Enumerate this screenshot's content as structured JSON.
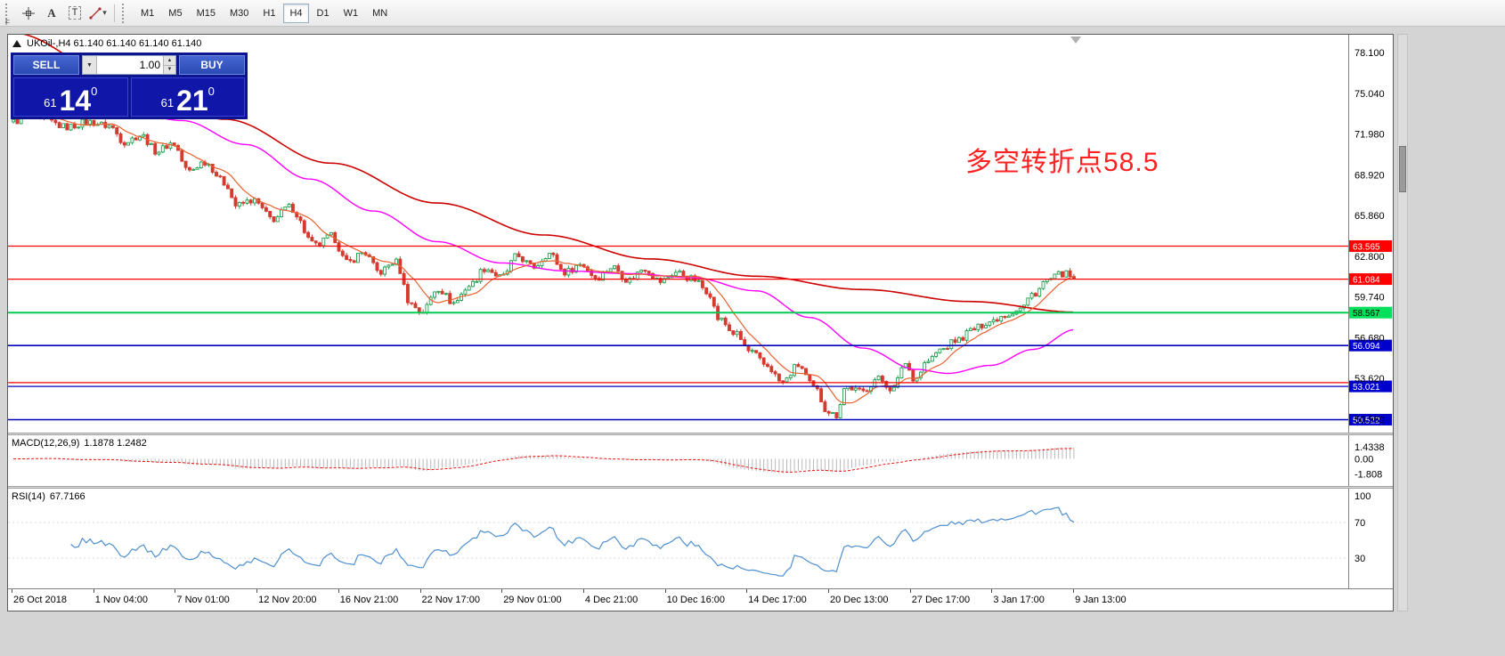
{
  "icons": {
    "caret_down": "▾",
    "lot_dropdown": "▼",
    "spin_up": "▲",
    "spin_down": "▼"
  },
  "toolbar": {
    "grip_mark": "F",
    "tool_a_label": "A",
    "tool_t_label": "T",
    "timeframes": [
      "M1",
      "M5",
      "M15",
      "M30",
      "H1",
      "H4",
      "D1",
      "W1",
      "MN"
    ],
    "active_timeframe": "H4"
  },
  "chart": {
    "title": "UKOil-,H4 61.140 61.140 61.140 61.140",
    "annotation": {
      "text": "多空转折点58.5",
      "color": "#ff2222"
    },
    "trade_panel": {
      "sell_label": "SELL",
      "buy_label": "BUY",
      "lot_value": "1.00",
      "sell_price": {
        "small": "61",
        "big": "14",
        "sup": "0"
      },
      "buy_price": {
        "small": "61",
        "big": "21",
        "sup": "0"
      }
    }
  },
  "chart_data": {
    "type": "candlestick",
    "symbol": "UKOil-",
    "period": "H4",
    "ohlc": [
      "61.140",
      "61.140",
      "61.140",
      "61.140"
    ],
    "last_close": 61.14,
    "candle_count": 278,
    "colors": {
      "bull": "#1f9e4e",
      "bear": "#d43a2f",
      "ma_fast": "#e8622d",
      "ma_mid": "#ff00ff",
      "ma_slow": "#cc0000",
      "macd_hist": "#b8b8b8",
      "macd_signal": "#ee1111",
      "rsi": "#4f8fd0"
    },
    "y_axis": {
      "max": 79.45,
      "min": 49.55,
      "ticks": [
        "78.100",
        "75.040",
        "71.980",
        "68.920",
        "65.860",
        "62.800",
        "59.740",
        "56.680",
        "53.620",
        "50.560"
      ]
    },
    "x_axis": {
      "labels": [
        "26 Oct 2018",
        "1 Nov 04:00",
        "7 Nov 01:00",
        "12 Nov 20:00",
        "16 Nov 21:00",
        "22 Nov 17:00",
        "29 Nov 01:00",
        "4 Dec 21:00",
        "10 Dec 16:00",
        "14 Dec 17:00",
        "20 Dec 13:00",
        "27 Dec 17:00",
        "3 Jan 17:00",
        "9 Jan 13:00"
      ]
    },
    "hlines": [
      {
        "price": 63.565,
        "color": "#ff0000",
        "width": 1.2,
        "tag": "63.565",
        "tag_bg": "#ff0000",
        "tag_color": "#ffffff"
      },
      {
        "price": 61.084,
        "color": "#ff0000",
        "width": 1.2,
        "tag": "61.084",
        "tag_bg": "#ff0000",
        "tag_color": "#ffffff"
      },
      {
        "price": 58.567,
        "color": "#00cc55",
        "width": 2,
        "tag": "58.567",
        "tag_bg": "#00e05a",
        "tag_color": "#000000"
      },
      {
        "price": 56.094,
        "color": "#0000bb",
        "width": 1.6,
        "tag": "56.094",
        "tag_bg": "#0000cc",
        "tag_color": "#ffffff"
      },
      {
        "price": 53.3,
        "color": "#ff0000",
        "width": 1.2,
        "tag": null
      },
      {
        "price": 53.021,
        "color": "#0000bb",
        "width": 1.2,
        "tag": "53.021",
        "tag_bg": "#0000cc",
        "tag_color": "#ffffff"
      },
      {
        "price": 50.522,
        "color": "#0000bb",
        "width": 1.6,
        "tag": "50.522",
        "tag_bg": "#0000cc",
        "tag_color": "#ffffff"
      }
    ],
    "price_path": [
      [
        0.0,
        72.9
      ],
      [
        0.012,
        73.3
      ],
      [
        0.03,
        73.0
      ],
      [
        0.05,
        72.5
      ],
      [
        0.07,
        72.9
      ],
      [
        0.09,
        72.6
      ],
      [
        0.105,
        71.4
      ],
      [
        0.12,
        71.9
      ],
      [
        0.135,
        70.7
      ],
      [
        0.15,
        71.3
      ],
      [
        0.165,
        69.2
      ],
      [
        0.18,
        69.9
      ],
      [
        0.2,
        68.3
      ],
      [
        0.21,
        66.6
      ],
      [
        0.225,
        67.0
      ],
      [
        0.245,
        65.6
      ],
      [
        0.26,
        66.5
      ],
      [
        0.285,
        63.6
      ],
      [
        0.3,
        64.3
      ],
      [
        0.315,
        62.3
      ],
      [
        0.33,
        63.1
      ],
      [
        0.345,
        61.6
      ],
      [
        0.36,
        62.4
      ],
      [
        0.375,
        59.2
      ],
      [
        0.385,
        58.6
      ],
      [
        0.4,
        60.4
      ],
      [
        0.415,
        59.3
      ],
      [
        0.43,
        60.6
      ],
      [
        0.445,
        61.9
      ],
      [
        0.46,
        61.2
      ],
      [
        0.475,
        62.8
      ],
      [
        0.49,
        62.0
      ],
      [
        0.505,
        63.0
      ],
      [
        0.52,
        61.6
      ],
      [
        0.535,
        62.2
      ],
      [
        0.55,
        61.2
      ],
      [
        0.565,
        62.0
      ],
      [
        0.58,
        61.0
      ],
      [
        0.595,
        61.9
      ],
      [
        0.61,
        60.9
      ],
      [
        0.625,
        61.6
      ],
      [
        0.64,
        61.1
      ],
      [
        0.655,
        60.2
      ],
      [
        0.665,
        58.1
      ],
      [
        0.68,
        57.0
      ],
      [
        0.695,
        55.6
      ],
      [
        0.71,
        54.6
      ],
      [
        0.725,
        53.3
      ],
      [
        0.74,
        54.6
      ],
      [
        0.755,
        52.9
      ],
      [
        0.768,
        51.2
      ],
      [
        0.775,
        50.8
      ],
      [
        0.785,
        53.0
      ],
      [
        0.8,
        52.6
      ],
      [
        0.815,
        53.6
      ],
      [
        0.83,
        52.8
      ],
      [
        0.84,
        54.8
      ],
      [
        0.85,
        53.6
      ],
      [
        0.862,
        54.9
      ],
      [
        0.875,
        55.8
      ],
      [
        0.89,
        56.5
      ],
      [
        0.905,
        57.3
      ],
      [
        0.92,
        57.9
      ],
      [
        0.935,
        58.4
      ],
      [
        0.95,
        58.9
      ],
      [
        0.962,
        60.0
      ],
      [
        0.975,
        61.0
      ],
      [
        0.99,
        61.5
      ],
      [
        1.0,
        61.14
      ]
    ],
    "ma_slow_path": [
      [
        0.0,
        79.6
      ],
      [
        0.1,
        76.3
      ],
      [
        0.2,
        73.1
      ],
      [
        0.3,
        69.8
      ],
      [
        0.4,
        66.8
      ],
      [
        0.5,
        64.4
      ],
      [
        0.6,
        62.6
      ],
      [
        0.7,
        61.3
      ],
      [
        0.8,
        60.3
      ],
      [
        0.9,
        59.4
      ],
      [
        1.0,
        58.6
      ]
    ],
    "ma_mid_path": [
      [
        0.0,
        75.8
      ],
      [
        0.08,
        74.6
      ],
      [
        0.16,
        73.0
      ],
      [
        0.22,
        71.2
      ],
      [
        0.28,
        68.6
      ],
      [
        0.34,
        66.2
      ],
      [
        0.4,
        63.9
      ],
      [
        0.46,
        62.3
      ],
      [
        0.52,
        61.7
      ],
      [
        0.58,
        61.5
      ],
      [
        0.64,
        61.2
      ],
      [
        0.7,
        60.2
      ],
      [
        0.75,
        58.2
      ],
      [
        0.8,
        55.9
      ],
      [
        0.85,
        54.3
      ],
      [
        0.88,
        54.0
      ],
      [
        0.92,
        54.6
      ],
      [
        0.96,
        55.8
      ],
      [
        1.0,
        57.3
      ]
    ],
    "indicators": {
      "macd": {
        "label": "MACD(12,26,9)",
        "values_text": "1.1878 1.2482",
        "axis": [
          "1.4338",
          "0.00",
          "-1.808"
        ]
      },
      "rsi": {
        "label": "RSI(14)",
        "value_text": "67.7166",
        "axis": [
          "100",
          "70",
          "30"
        ]
      }
    }
  }
}
